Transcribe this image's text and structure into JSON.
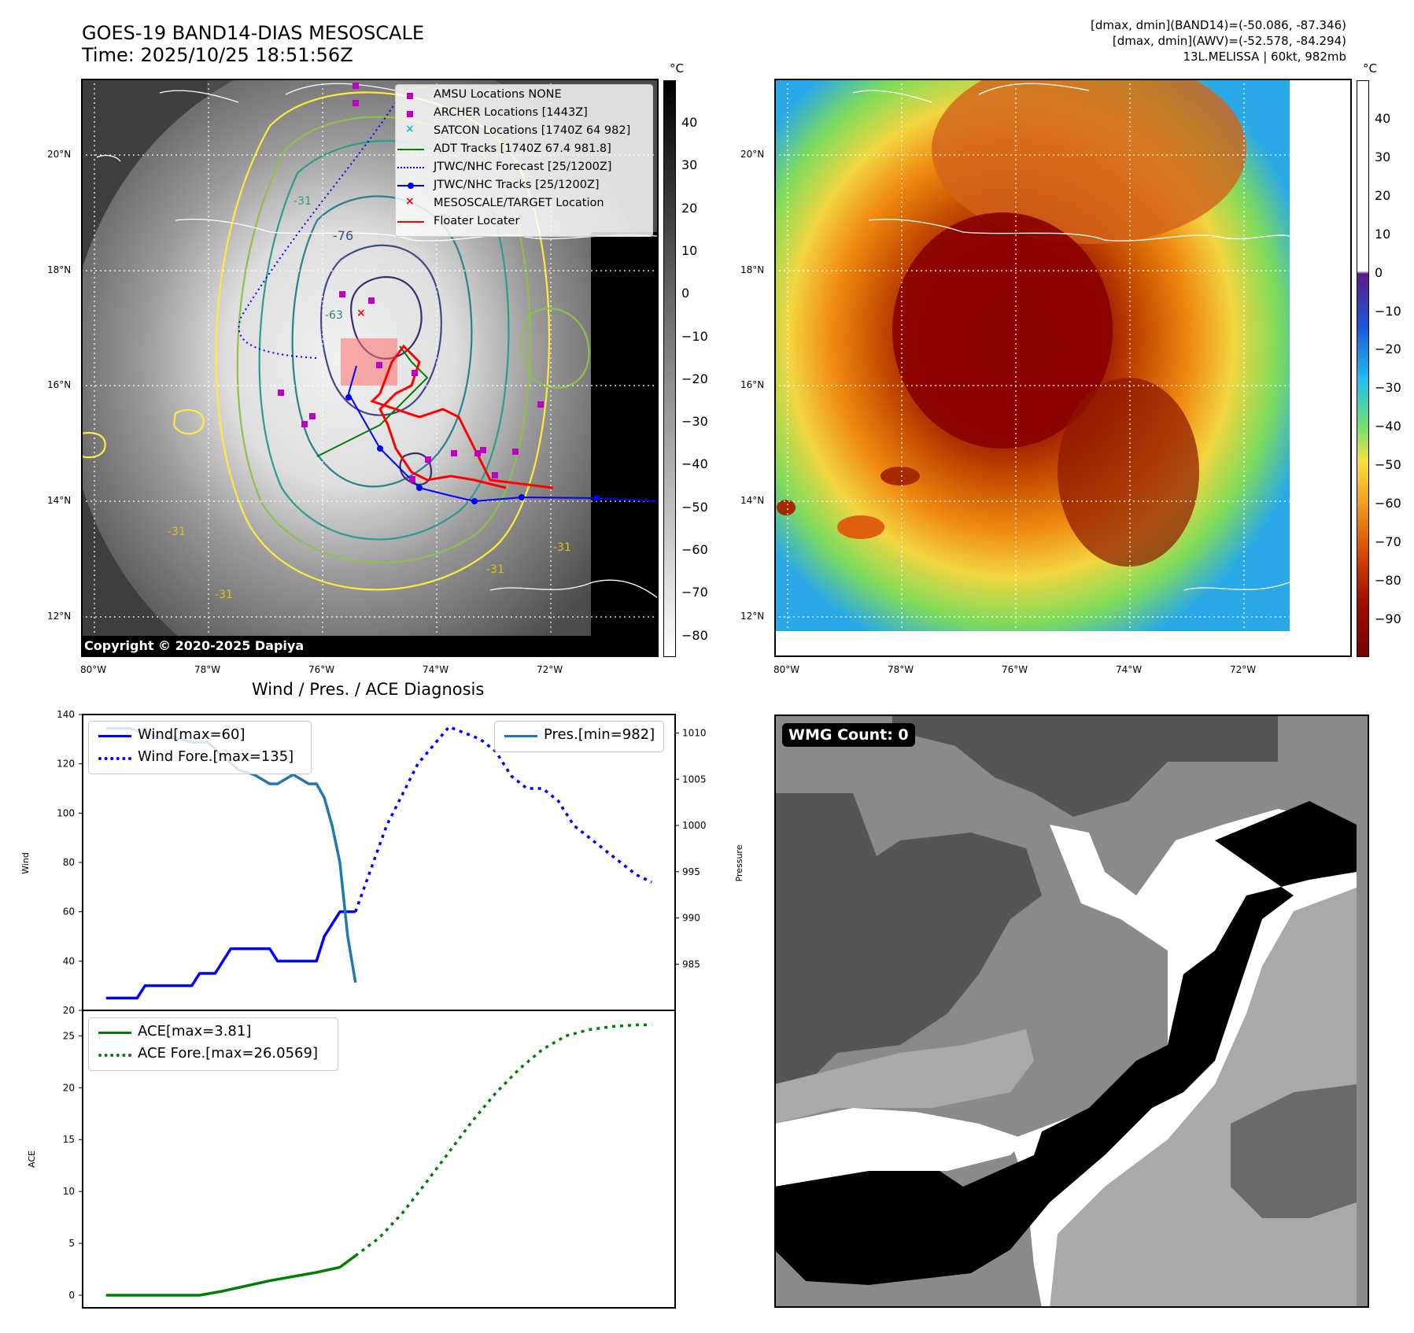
{
  "header": {
    "title_line1": "GOES-19 BAND14-DIAS MESOSCALE",
    "title_line2": "Time: 2025/10/25 18:51:56Z",
    "info_line1": "[dmax, dmin](BAND14)=(-50.086, -87.346)",
    "info_line2": "[dmax, dmin](AWV)=(-52.578, -84.294)",
    "info_line3": "13L.MELISSA | 60kt, 982mb"
  },
  "map": {
    "lat_labels": [
      "20°N",
      "18°N",
      "16°N",
      "14°N",
      "12°N"
    ],
    "lon_labels": [
      "80°W",
      "78°W",
      "76°W",
      "74°W",
      "72°W"
    ],
    "contour_labels": [
      "-76",
      "-63",
      "-31",
      "-31",
      "-31",
      "-31",
      "-31"
    ],
    "copyright": "Copyright © 2020-2025 Dapiya"
  },
  "colorbar_left": {
    "unit": "°C",
    "ticks": [
      "40",
      "30",
      "20",
      "10",
      "0",
      "−10",
      "−20",
      "−30",
      "−40",
      "−50",
      "−60",
      "−70",
      "−80"
    ]
  },
  "colorbar_right": {
    "unit": "°C",
    "ticks": [
      "40",
      "30",
      "20",
      "10",
      "0",
      "−10",
      "−20",
      "−30",
      "−40",
      "−50",
      "−60",
      "−70",
      "−80",
      "−90"
    ]
  },
  "legend_map": [
    {
      "label": "AMSU Locations NONE",
      "symbol": "square",
      "color": "#c000c0"
    },
    {
      "label": "ARCHER Locations [1443Z]",
      "symbol": "square",
      "color": "#c000c0"
    },
    {
      "label": "SATCON Locations [1740Z 64 982]",
      "symbol": "x",
      "color": "#17becf"
    },
    {
      "label": "ADT Tracks [1740Z 67.4 981.8]",
      "symbol": "line",
      "color": "#008000"
    },
    {
      "label": "JTWC/NHC Forecast [25/1200Z]",
      "symbol": "dotted",
      "color": "#0000ff"
    },
    {
      "label": "JTWC/NHC Tracks [25/1200Z]",
      "symbol": "line-dot",
      "color": "#0000ff"
    },
    {
      "label": "MESOSCALE/TARGET Location",
      "symbol": "x",
      "color": "#ff0000"
    },
    {
      "label": "Floater Locater",
      "symbol": "line",
      "color": "#ff0000"
    }
  ],
  "wmg": {
    "label": "WMG Count: 0"
  },
  "colors": {
    "wind": "#0000ff",
    "pres": "#1f77b4",
    "ace": "#008000"
  },
  "chart_data": [
    {
      "type": "line",
      "title": "Wind / Pres. / ACE Diagnosis",
      "ylabel": "Wind",
      "ylabel2": "Pressure",
      "ylim": [
        20,
        140
      ],
      "ylim2": [
        980,
        1012
      ],
      "yticks": [
        "140",
        "120",
        "100",
        "80",
        "60",
        "40",
        "20"
      ],
      "yticks2": [
        "1010",
        "1005",
        "1000",
        "995",
        "990",
        "985"
      ],
      "legend": [
        {
          "label": "Wind[max=60]",
          "style": "solid"
        },
        {
          "label": "Wind Fore.[max=135]",
          "style": "dotted"
        }
      ],
      "legend2": [
        {
          "label": "Pres.[min=982]",
          "style": "solid"
        }
      ],
      "series": [
        {
          "name": "Wind",
          "axis": "left",
          "style": "solid",
          "color": "#0000ff",
          "x": [
            0,
            3,
            4,
            5,
            6,
            7,
            8,
            9,
            10,
            11,
            12,
            13,
            14,
            15,
            16,
            17,
            18,
            19,
            20,
            21,
            22,
            23,
            24,
            25,
            26,
            27,
            28,
            29,
            30,
            31,
            32
          ],
          "values": [
            25,
            25,
            25,
            30,
            30,
            30,
            30,
            30,
            30,
            30,
            35,
            35,
            35,
            40,
            45,
            45,
            45,
            45,
            45,
            45,
            40,
            40,
            40,
            40,
            40,
            40,
            50,
            55,
            60,
            60,
            60
          ]
        },
        {
          "name": "Wind Fore.",
          "axis": "left",
          "style": "dotted",
          "color": "#0000ff",
          "x": [
            32,
            36,
            40,
            44,
            48,
            50,
            52,
            54,
            56,
            58,
            60,
            62,
            64,
            66,
            68,
            70
          ],
          "values": [
            60,
            95,
            120,
            135,
            130,
            125,
            115,
            110,
            110,
            105,
            95,
            90,
            85,
            80,
            75,
            72
          ]
        },
        {
          "name": "Pres.",
          "axis": "right",
          "style": "solid",
          "color": "#1f77b4",
          "x": [
            0,
            3,
            5,
            7,
            9,
            11,
            13,
            15,
            17,
            19,
            21,
            22,
            23,
            24,
            25,
            26,
            27,
            28,
            29,
            30,
            31,
            32
          ],
          "values": [
            1010.5,
            1010.5,
            1010,
            1009.5,
            1009.5,
            1009,
            1009,
            1007.5,
            1006,
            1005.5,
            1004.5,
            1004.5,
            1005,
            1005.5,
            1005,
            1004.5,
            1004.5,
            1003,
            1000,
            996,
            988,
            983
          ]
        }
      ]
    },
    {
      "type": "line",
      "ylabel": "ACE",
      "ylim": [
        0,
        27
      ],
      "yticks": [
        "25",
        "20",
        "15",
        "10",
        "5",
        "0"
      ],
      "legend": [
        {
          "label": "ACE[max=3.81]",
          "style": "solid"
        },
        {
          "label": "ACE Fore.[max=26.0569]",
          "style": "dotted"
        }
      ],
      "series": [
        {
          "name": "ACE",
          "style": "solid",
          "color": "#008000",
          "x": [
            0,
            3,
            6,
            9,
            12,
            15,
            18,
            21,
            24,
            27,
            30,
            32
          ],
          "values": [
            0,
            0,
            0,
            0,
            0,
            0.4,
            0.9,
            1.4,
            1.8,
            2.2,
            2.7,
            3.81
          ]
        },
        {
          "name": "ACE Fore.",
          "style": "dotted",
          "color": "#008000",
          "x": [
            32,
            35,
            38,
            41,
            44,
            47,
            50,
            53,
            56,
            59,
            62,
            65,
            68,
            70
          ],
          "values": [
            3.81,
            5.5,
            7.9,
            10.8,
            13.8,
            16.8,
            19.5,
            21.8,
            23.7,
            25.0,
            25.6,
            25.9,
            26.05,
            26.06
          ]
        }
      ]
    }
  ]
}
